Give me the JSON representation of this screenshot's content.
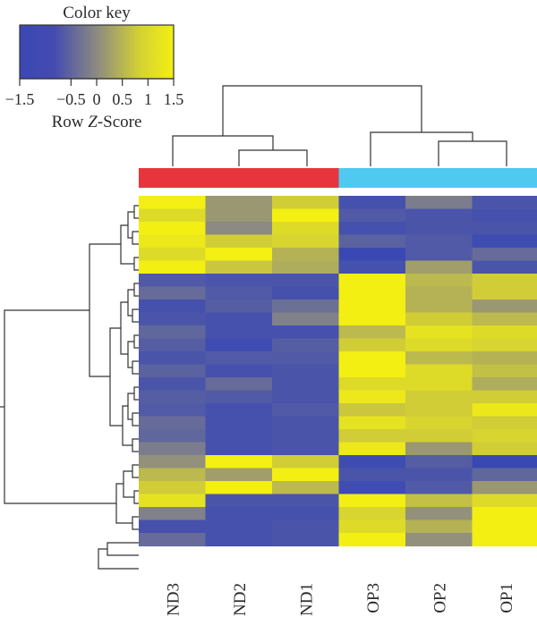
{
  "chart_data": {
    "type": "heatmap",
    "title": "",
    "columns": [
      "ND3",
      "ND2",
      "ND1",
      "OP3",
      "OP2",
      "OP1"
    ],
    "column_groups": [
      {
        "members": [
          "ND3",
          "ND2",
          "ND1"
        ],
        "color": "#e8353d"
      },
      {
        "members": [
          "OP3",
          "OP2",
          "OP1"
        ],
        "color": "#4fc9ef"
      }
    ],
    "color_scale": {
      "title": "Color key",
      "label_prefix": "Row ",
      "label_italic": "Z",
      "label_suffix": "-Score",
      "min": -1.5,
      "max": 1.5,
      "tick_values": [
        -1.5,
        -0.5,
        0,
        0.5,
        1,
        1.5
      ],
      "tick_labels": [
        "−1.5",
        "−0.5",
        "0",
        "0.5",
        "1",
        "1.5"
      ],
      "colors": {
        "low": "#3a48b4",
        "mid": "#8c8a82",
        "high": "#f3ef12"
      }
    },
    "rows": [
      [
        1.5,
        0.2,
        1.0,
        -1.3,
        -0.3,
        -1.2
      ],
      [
        1.2,
        0.2,
        1.5,
        -1.1,
        -1.2,
        -1.3
      ],
      [
        1.5,
        0.0,
        1.2,
        -1.3,
        -1.2,
        -1.2
      ],
      [
        1.4,
        1.0,
        1.1,
        -0.9,
        -1.1,
        -1.4
      ],
      [
        1.2,
        1.5,
        0.6,
        -1.5,
        -1.1,
        -0.7
      ],
      [
        1.5,
        0.9,
        0.5,
        -1.3,
        0.3,
        -1.2
      ],
      [
        -1.1,
        -1.2,
        -1.2,
        1.5,
        0.7,
        1.0
      ],
      [
        -0.7,
        -1.1,
        -1.3,
        1.5,
        0.6,
        1.0
      ],
      [
        -1.3,
        -1.0,
        -0.6,
        1.5,
        0.6,
        0.2
      ],
      [
        -1.2,
        -1.3,
        -0.2,
        1.5,
        1.0,
        0.7
      ],
      [
        -0.8,
        -1.3,
        -1.3,
        0.7,
        1.3,
        1.2
      ],
      [
        -1.0,
        -1.4,
        -1.0,
        1.0,
        1.2,
        1.1
      ],
      [
        -1.2,
        -1.1,
        -1.1,
        1.5,
        0.7,
        0.6
      ],
      [
        -0.9,
        -1.3,
        -1.2,
        1.5,
        1.2,
        0.8
      ],
      [
        -1.2,
        -0.7,
        -1.2,
        1.2,
        1.2,
        0.5
      ],
      [
        -1.0,
        -1.1,
        -1.2,
        1.4,
        1.0,
        1.0
      ],
      [
        -1.1,
        -1.3,
        -1.1,
        0.9,
        1.0,
        1.4
      ],
      [
        -0.7,
        -1.3,
        -1.2,
        1.3,
        1.1,
        1.0
      ],
      [
        -0.8,
        -1.3,
        -1.2,
        1.0,
        1.0,
        1.1
      ],
      [
        -0.3,
        -1.3,
        -1.2,
        1.4,
        0.2,
        1.0
      ],
      [
        0.1,
        1.5,
        1.0,
        -1.4,
        -1.0,
        -1.5
      ],
      [
        0.7,
        0.3,
        1.5,
        -1.2,
        -1.2,
        -0.8
      ],
      [
        1.0,
        1.5,
        0.7,
        -1.4,
        -1.1,
        0.2
      ],
      [
        1.3,
        -1.2,
        -1.2,
        1.5,
        0.8,
        1.2
      ],
      [
        -0.2,
        -1.3,
        -1.3,
        1.1,
        0.1,
        1.5
      ],
      [
        -1.3,
        -1.3,
        -1.2,
        1.2,
        0.6,
        1.5
      ],
      [
        -0.7,
        -1.3,
        -1.2,
        1.5,
        0.1,
        1.5
      ]
    ]
  }
}
